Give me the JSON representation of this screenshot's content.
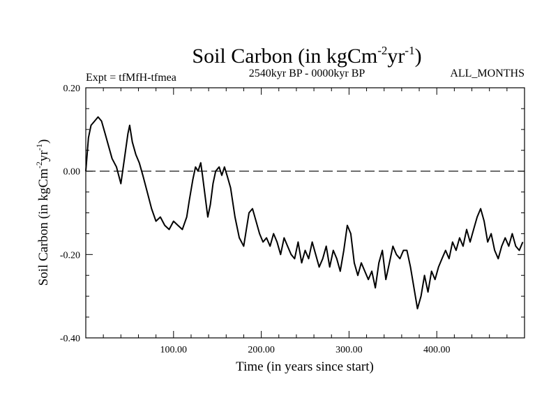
{
  "chart_data": {
    "type": "line",
    "title": "Soil Carbon (in kgCm",
    "title_sup1": "-2",
    "title_mid": "yr",
    "title_sup2": "-1",
    "title_end": ")",
    "subtitle_left": "Expt = tfMfH-tfmea",
    "subtitle_center": "2540kyr BP - 0000kyr BP",
    "subtitle_right": "ALL_MONTHS",
    "xlabel": "Time (in years since start)",
    "ylabel": "Soil Carbon (in kgCm",
    "ylabel_sup1": "-2",
    "ylabel_mid": "yr",
    "ylabel_sup2": "-1",
    "ylabel_end": ")",
    "xlim": [
      0,
      500
    ],
    "ylim": [
      -0.4,
      0.2
    ],
    "xticks": [
      100,
      200,
      300,
      400
    ],
    "xtick_labels": [
      "100.00",
      "200.00",
      "300.00",
      "400.00"
    ],
    "yticks": [
      -0.4,
      -0.2,
      0.0,
      0.2
    ],
    "ytick_labels": [
      "-0.40",
      "-0.20",
      "0.00",
      "0.20"
    ],
    "reference_line": 0.0,
    "series": [
      {
        "name": "Soil Carbon",
        "color": "#000000",
        "x": [
          0,
          3,
          6,
          10,
          14,
          18,
          22,
          26,
          30,
          35,
          40,
          44,
          48,
          50,
          53,
          57,
          61,
          65,
          70,
          75,
          80,
          85,
          90,
          95,
          100,
          105,
          110,
          115,
          118,
          122,
          125,
          128,
          131,
          133,
          136,
          139,
          142,
          145,
          148,
          152,
          155,
          158,
          161,
          165,
          170,
          175,
          180,
          183,
          186,
          190,
          194,
          198,
          202,
          206,
          210,
          214,
          218,
          222,
          226,
          230,
          234,
          238,
          242,
          246,
          250,
          254,
          258,
          262,
          266,
          270,
          274,
          278,
          282,
          286,
          290,
          294,
          298,
          302,
          306,
          310,
          314,
          318,
          322,
          326,
          330,
          334,
          338,
          342,
          346,
          350,
          354,
          358,
          362,
          366,
          370,
          374,
          378,
          382,
          386,
          390,
          394,
          398,
          402,
          406,
          410,
          414,
          418,
          422,
          426,
          430,
          434,
          438,
          442,
          446,
          450,
          454,
          458,
          462,
          466,
          470,
          474,
          478,
          482,
          486,
          490,
          494,
          498
        ],
        "values": [
          0.0,
          0.08,
          0.11,
          0.12,
          0.13,
          0.12,
          0.09,
          0.06,
          0.03,
          0.01,
          -0.03,
          0.03,
          0.09,
          0.11,
          0.07,
          0.04,
          0.02,
          -0.01,
          -0.05,
          -0.09,
          -0.12,
          -0.11,
          -0.13,
          -0.14,
          -0.12,
          -0.13,
          -0.14,
          -0.11,
          -0.07,
          -0.02,
          0.01,
          0.0,
          0.02,
          -0.01,
          -0.06,
          -0.11,
          -0.08,
          -0.03,
          0.0,
          0.01,
          -0.01,
          0.01,
          -0.01,
          -0.04,
          -0.11,
          -0.16,
          -0.18,
          -0.14,
          -0.1,
          -0.09,
          -0.12,
          -0.15,
          -0.17,
          -0.16,
          -0.18,
          -0.15,
          -0.17,
          -0.2,
          -0.16,
          -0.18,
          -0.2,
          -0.21,
          -0.17,
          -0.22,
          -0.19,
          -0.21,
          -0.17,
          -0.2,
          -0.23,
          -0.21,
          -0.18,
          -0.23,
          -0.19,
          -0.21,
          -0.24,
          -0.19,
          -0.13,
          -0.15,
          -0.22,
          -0.25,
          -0.22,
          -0.24,
          -0.26,
          -0.24,
          -0.28,
          -0.22,
          -0.19,
          -0.26,
          -0.22,
          -0.18,
          -0.2,
          -0.21,
          -0.19,
          -0.19,
          -0.23,
          -0.28,
          -0.33,
          -0.3,
          -0.25,
          -0.29,
          -0.24,
          -0.26,
          -0.23,
          -0.21,
          -0.19,
          -0.21,
          -0.17,
          -0.19,
          -0.16,
          -0.18,
          -0.14,
          -0.17,
          -0.14,
          -0.11,
          -0.09,
          -0.12,
          -0.17,
          -0.15,
          -0.19,
          -0.21,
          -0.18,
          -0.16,
          -0.18,
          -0.15,
          -0.18,
          -0.19,
          -0.17
        ]
      }
    ]
  }
}
